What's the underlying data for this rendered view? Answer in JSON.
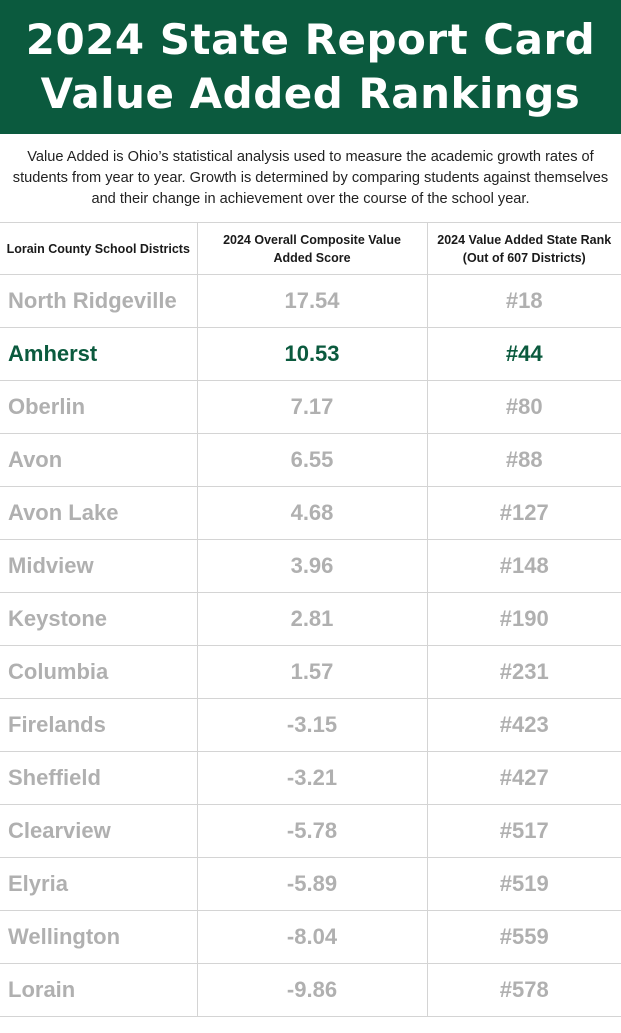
{
  "header": {
    "title_line1": "2024 State Report Card",
    "title_line2": "Value Added Rankings"
  },
  "intro": "Value Added is Ohio’s statistical analysis used to measure the academic growth rates of students from year to year. Growth is determined by comparing students against themselves and their change in achievement over the course of the school year.",
  "table": {
    "columns": [
      "Lorain County School Districts",
      "2024 Overall Composite Value Added Score",
      "2024 Value Added State Rank (Out of 607 Districts)"
    ],
    "highlight_color": "#0b5a3e",
    "rows": [
      {
        "district": "North Ridgeville",
        "score": "17.54",
        "rank": "#18",
        "highlight": false
      },
      {
        "district": "Amherst",
        "score": "10.53",
        "rank": "#44",
        "highlight": true
      },
      {
        "district": "Oberlin",
        "score": "7.17",
        "rank": "#80",
        "highlight": false
      },
      {
        "district": "Avon",
        "score": "6.55",
        "rank": "#88",
        "highlight": false
      },
      {
        "district": "Avon Lake",
        "score": "4.68",
        "rank": "#127",
        "highlight": false
      },
      {
        "district": "Midview",
        "score": "3.96",
        "rank": "#148",
        "highlight": false
      },
      {
        "district": "Keystone",
        "score": "2.81",
        "rank": "#190",
        "highlight": false
      },
      {
        "district": "Columbia",
        "score": "1.57",
        "rank": "#231",
        "highlight": false
      },
      {
        "district": "Firelands",
        "score": "-3.15",
        "rank": "#423",
        "highlight": false
      },
      {
        "district": "Sheffield",
        "score": "-3.21",
        "rank": "#427",
        "highlight": false
      },
      {
        "district": "Clearview",
        "score": "-5.78",
        "rank": "#517",
        "highlight": false
      },
      {
        "district": "Elyria",
        "score": "-5.89",
        "rank": "#519",
        "highlight": false
      },
      {
        "district": "Wellington",
        "score": "-8.04",
        "rank": "#559",
        "highlight": false
      },
      {
        "district": "Lorain",
        "score": "-9.86",
        "rank": "#578",
        "highlight": false
      }
    ]
  }
}
